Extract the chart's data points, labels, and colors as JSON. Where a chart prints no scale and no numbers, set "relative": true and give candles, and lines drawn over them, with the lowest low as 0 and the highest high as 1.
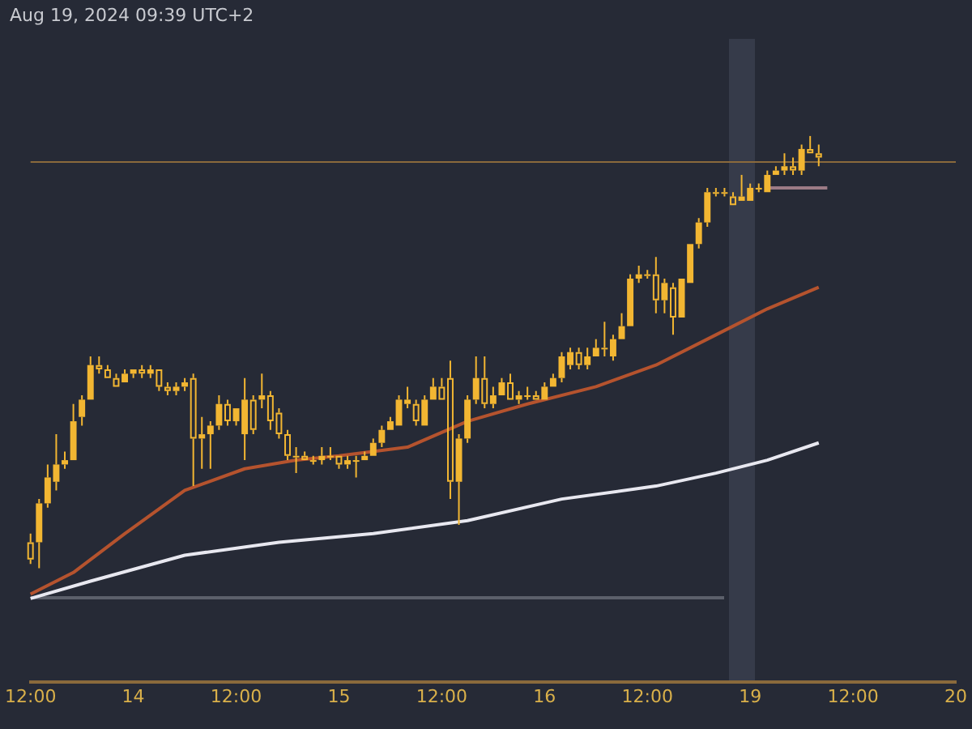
{
  "chart_data": {
    "type": "candlestick",
    "relative": true,
    "color": "#f2b632",
    "categories": [
      "12:00",
      null,
      null,
      null,
      null,
      null,
      null,
      null,
      null,
      null,
      null,
      null,
      "14",
      null,
      null,
      null,
      null,
      null,
      null,
      null,
      null,
      null,
      null,
      null,
      "12:00",
      null,
      null,
      null,
      null,
      null,
      null,
      null,
      null,
      null,
      null,
      null,
      "15",
      null,
      null,
      null,
      null,
      null,
      null,
      null,
      null,
      null,
      null,
      null,
      "12:00",
      null,
      null,
      null,
      null,
      null,
      null,
      null,
      null,
      null,
      null,
      null,
      "16",
      null,
      null,
      null,
      null,
      null,
      null,
      null,
      null,
      null,
      null,
      null,
      "12:00",
      null,
      null,
      null,
      null,
      null,
      null,
      null,
      null,
      null,
      null,
      null,
      "19",
      null,
      null,
      null,
      null,
      null,
      null,
      null,
      null,
      null,
      null,
      null,
      "12:00",
      null,
      null,
      null,
      null,
      null,
      null,
      null,
      null,
      null,
      null,
      null,
      "20"
    ],
    "ohlc": [
      [
        0.06,
        0.08,
        0.01,
        0.02
      ],
      [
        0.06,
        0.16,
        0,
        0.15
      ],
      [
        0.15,
        0.24,
        0.14,
        0.21
      ],
      [
        0.2,
        0.31,
        0.18,
        0.24
      ],
      [
        0.24,
        0.27,
        0.23,
        0.25
      ],
      [
        0.25,
        0.38,
        0.25,
        0.34
      ],
      [
        0.35,
        0.4,
        0.33,
        0.39
      ],
      [
        0.39,
        0.49,
        0.39,
        0.47
      ],
      [
        0.47,
        0.49,
        0.45,
        0.46
      ],
      [
        0.46,
        0.47,
        0.44,
        0.44
      ],
      [
        0.44,
        0.45,
        0.42,
        0.42
      ],
      [
        0.43,
        0.46,
        0.43,
        0.45
      ],
      [
        0.45,
        0.46,
        0.44,
        0.46
      ],
      [
        0.46,
        0.47,
        0.44,
        0.45
      ],
      [
        0.45,
        0.47,
        0.44,
        0.46
      ],
      [
        0.46,
        0.46,
        0.41,
        0.42
      ],
      [
        0.42,
        0.43,
        0.4,
        0.41
      ],
      [
        0.41,
        0.43,
        0.4,
        0.42
      ],
      [
        0.42,
        0.44,
        0.41,
        0.43
      ],
      [
        0.44,
        0.45,
        0.19,
        0.3
      ],
      [
        0.3,
        0.35,
        0.23,
        0.31
      ],
      [
        0.31,
        0.34,
        0.23,
        0.33
      ],
      [
        0.33,
        0.4,
        0.32,
        0.38
      ],
      [
        0.38,
        0.39,
        0.33,
        0.34
      ],
      [
        0.34,
        0.37,
        0.33,
        0.37
      ],
      [
        0.31,
        0.44,
        0.25,
        0.39
      ],
      [
        0.39,
        0.4,
        0.31,
        0.32
      ],
      [
        0.39,
        0.45,
        0.37,
        0.4
      ],
      [
        0.4,
        0.41,
        0.32,
        0.34
      ],
      [
        0.36,
        0.37,
        0.3,
        0.31
      ],
      [
        0.31,
        0.32,
        0.25,
        0.26
      ],
      [
        0.26,
        0.28,
        0.22,
        0.26
      ],
      [
        0.26,
        0.27,
        0.25,
        0.25
      ],
      [
        0.25,
        0.26,
        0.24,
        0.25
      ],
      [
        0.25,
        0.28,
        0.24,
        0.26
      ],
      [
        0.26,
        0.28,
        0.25,
        0.26
      ],
      [
        0.26,
        0.26,
        0.23,
        0.24
      ],
      [
        0.24,
        0.26,
        0.23,
        0.25
      ],
      [
        0.25,
        0.26,
        0.21,
        0.25
      ],
      [
        0.25,
        0.27,
        0.25,
        0.26
      ],
      [
        0.26,
        0.3,
        0.26,
        0.29
      ],
      [
        0.29,
        0.33,
        0.28,
        0.32
      ],
      [
        0.32,
        0.35,
        0.32,
        0.34
      ],
      [
        0.33,
        0.4,
        0.33,
        0.39
      ],
      [
        0.38,
        0.42,
        0.37,
        0.39
      ],
      [
        0.38,
        0.39,
        0.33,
        0.34
      ],
      [
        0.33,
        0.4,
        0.33,
        0.39
      ],
      [
        0.39,
        0.44,
        0.39,
        0.42
      ],
      [
        0.42,
        0.44,
        0.39,
        0.39
      ],
      [
        0.44,
        0.48,
        0.16,
        0.2
      ],
      [
        0.2,
        0.31,
        0.1,
        0.3
      ],
      [
        0.3,
        0.4,
        0.29,
        0.39
      ],
      [
        0.39,
        0.49,
        0.38,
        0.44
      ],
      [
        0.44,
        0.49,
        0.37,
        0.38
      ],
      [
        0.38,
        0.42,
        0.37,
        0.4
      ],
      [
        0.4,
        0.44,
        0.4,
        0.43
      ],
      [
        0.43,
        0.45,
        0.39,
        0.39
      ],
      [
        0.39,
        0.41,
        0.38,
        0.4
      ],
      [
        0.4,
        0.42,
        0.39,
        0.4
      ],
      [
        0.4,
        0.41,
        0.39,
        0.39
      ],
      [
        0.39,
        0.43,
        0.39,
        0.42
      ],
      [
        0.42,
        0.45,
        0.42,
        0.44
      ],
      [
        0.44,
        0.5,
        0.43,
        0.49
      ],
      [
        0.47,
        0.51,
        0.46,
        0.5
      ],
      [
        0.5,
        0.51,
        0.46,
        0.47
      ],
      [
        0.47,
        0.51,
        0.46,
        0.49
      ],
      [
        0.49,
        0.53,
        0.49,
        0.51
      ],
      [
        0.51,
        0.57,
        0.49,
        0.51
      ],
      [
        0.49,
        0.54,
        0.48,
        0.53
      ],
      [
        0.53,
        0.59,
        0.53,
        0.56
      ],
      [
        0.56,
        0.68,
        0.56,
        0.67
      ],
      [
        0.67,
        0.7,
        0.66,
        0.68
      ],
      [
        0.68,
        0.69,
        0.67,
        0.68
      ],
      [
        0.68,
        0.72,
        0.59,
        0.62
      ],
      [
        0.62,
        0.67,
        0.59,
        0.66
      ],
      [
        0.65,
        0.66,
        0.54,
        0.58
      ],
      [
        0.58,
        0.67,
        0.58,
        0.67
      ],
      [
        0.66,
        0.75,
        0.66,
        0.75
      ],
      [
        0.75,
        0.81,
        0.74,
        0.8
      ],
      [
        0.8,
        0.88,
        0.79,
        0.87
      ],
      [
        0.87,
        0.88,
        0.86,
        0.87
      ],
      [
        0.87,
        0.88,
        0.86,
        0.87
      ],
      [
        0.86,
        0.87,
        0.84,
        0.84
      ],
      [
        0.85,
        0.91,
        0.85,
        0.86
      ],
      [
        0.85,
        0.89,
        0.85,
        0.88
      ],
      [
        0.88,
        0.89,
        0.87,
        0.88
      ],
      [
        0.87,
        0.92,
        0.87,
        0.91
      ],
      [
        0.91,
        0.93,
        0.91,
        0.92
      ],
      [
        0.92,
        0.96,
        0.91,
        0.93
      ],
      [
        0.93,
        0.95,
        0.91,
        0.92
      ],
      [
        0.92,
        0.98,
        0.91,
        0.97
      ],
      [
        0.97,
        1,
        0.96,
        0.96
      ],
      [
        0.96,
        0.98,
        0.93,
        0.95
      ],
      null,
      null,
      null,
      null,
      null,
      null,
      null,
      null,
      null,
      null,
      null,
      null,
      null,
      null,
      null,
      null
    ],
    "series": [
      {
        "type": "line",
        "color": "#b5532e",
        "values": [
          -0.06,
          null,
          null,
          null,
          null,
          -0.01,
          null,
          null,
          null,
          null,
          null,
          0.08,
          null,
          null,
          null,
          null,
          null,
          null,
          0.18,
          null,
          null,
          null,
          null,
          null,
          null,
          0.23,
          null,
          null,
          null,
          null,
          null,
          0.25,
          null,
          null,
          null,
          null,
          0.26,
          null,
          null,
          null,
          null,
          null,
          null,
          null,
          0.28,
          null,
          null,
          null,
          null,
          null,
          null,
          0.34,
          null,
          null,
          null,
          null,
          null,
          null,
          0.38,
          null,
          null,
          null,
          null,
          null,
          null,
          null,
          0.42,
          null,
          null,
          null,
          null,
          null,
          null,
          0.47,
          null,
          null,
          null,
          null,
          null,
          null,
          0.54,
          null,
          null,
          null,
          null,
          null,
          0.6,
          null,
          null,
          null,
          null,
          null,
          0.65,
          null,
          null,
          null,
          null,
          null,
          null,
          null,
          null,
          null,
          null,
          null,
          null,
          null,
          null,
          null,
          null
        ]
      },
      {
        "type": "line",
        "color": "#e8e8f0",
        "values": [
          -0.07,
          null,
          null,
          null,
          null,
          null,
          null,
          -0.03,
          null,
          null,
          null,
          null,
          null,
          null,
          null,
          null,
          null,
          null,
          0.03,
          null,
          null,
          null,
          null,
          null,
          null,
          null,
          null,
          null,
          null,
          0.06,
          null,
          null,
          null,
          null,
          null,
          null,
          null,
          null,
          null,
          null,
          0.08,
          null,
          null,
          null,
          null,
          null,
          null,
          null,
          null,
          null,
          null,
          0.11,
          null,
          null,
          null,
          null,
          null,
          null,
          null,
          null,
          null,
          null,
          0.16,
          null,
          null,
          null,
          null,
          null,
          null,
          null,
          null,
          null,
          null,
          0.19,
          null,
          null,
          null,
          null,
          null,
          null,
          0.22,
          null,
          null,
          null,
          null,
          null,
          0.25,
          null,
          null,
          null,
          null,
          null,
          0.29,
          null,
          null,
          null,
          null,
          null,
          null,
          null,
          null,
          null,
          null,
          null,
          null,
          null,
          null,
          null,
          null
        ]
      },
      {
        "type": "line",
        "color": "#9c7b86",
        "values": [
          null,
          null,
          null,
          null,
          null,
          null,
          null,
          null,
          null,
          null,
          null,
          null,
          null,
          null,
          null,
          null,
          null,
          null,
          null,
          null,
          null,
          null,
          null,
          null,
          null,
          null,
          null,
          null,
          null,
          null,
          null,
          null,
          null,
          null,
          null,
          null,
          null,
          null,
          null,
          null,
          null,
          null,
          null,
          null,
          null,
          null,
          null,
          null,
          null,
          null,
          null,
          null,
          null,
          null,
          null,
          null,
          null,
          null,
          null,
          null,
          null,
          null,
          null,
          null,
          null,
          null,
          null,
          null,
          null,
          null,
          null,
          null,
          null,
          null,
          null,
          null,
          null,
          null,
          null,
          null,
          null,
          null,
          null,
          null,
          null,
          null,
          0.88,
          null,
          null,
          null,
          null,
          null,
          null,
          0.88,
          null,
          null,
          null,
          null,
          null,
          null,
          null,
          null,
          null,
          null,
          null,
          null,
          null,
          null,
          null
        ]
      }
    ],
    "ref_lines": [
      {
        "axis": "y",
        "value": 0.94,
        "label": null,
        "color": "#8a6a3c"
      }
    ],
    "annotations": [
      "Aug 19, 2024 09:39 UTC+2"
    ]
  }
}
